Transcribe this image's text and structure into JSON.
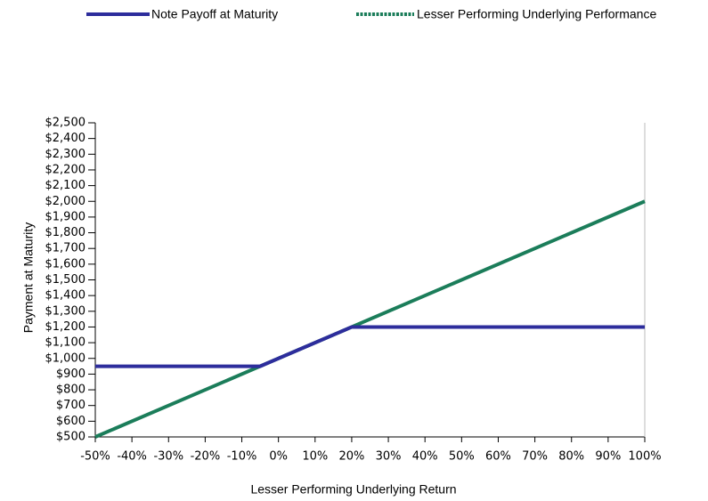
{
  "chart_data": {
    "type": "line",
    "x_label": "Lesser Performing Underlying Return",
    "y_label": "Payment at Maturity",
    "x": [
      -50,
      -5,
      20,
      100
    ],
    "series": [
      {
        "name": "Note Payoff at Maturity",
        "color": "#2d2d9c",
        "values": [
          950,
          950,
          1200,
          1200
        ]
      },
      {
        "name": "Lesser Performing Underlying Performance",
        "color": "#1b7d5a",
        "values": [
          500,
          950,
          1200,
          2000
        ]
      }
    ],
    "xlim": [
      -50,
      100
    ],
    "xticks": [
      {
        "value": -50,
        "label": "-50%"
      },
      {
        "value": -40,
        "label": "-40%"
      },
      {
        "value": -30,
        "label": "-30%"
      },
      {
        "value": -20,
        "label": "-20%"
      },
      {
        "value": -10,
        "label": "-10%"
      },
      {
        "value": 0,
        "label": "0%"
      },
      {
        "value": 10,
        "label": "10%"
      },
      {
        "value": 20,
        "label": "20%"
      },
      {
        "value": 30,
        "label": "30%"
      },
      {
        "value": 40,
        "label": "40%"
      },
      {
        "value": 50,
        "label": "50%"
      },
      {
        "value": 60,
        "label": "60%"
      },
      {
        "value": 70,
        "label": "70%"
      },
      {
        "value": 80,
        "label": "80%"
      },
      {
        "value": 90,
        "label": "90%"
      },
      {
        "value": 100,
        "label": "100%"
      }
    ],
    "ylim": [
      500,
      2500
    ],
    "yticks": [
      {
        "value": 500,
        "label": "$500"
      },
      {
        "value": 600,
        "label": "$600"
      },
      {
        "value": 700,
        "label": "$700"
      },
      {
        "value": 800,
        "label": "$800"
      },
      {
        "value": 900,
        "label": "$900"
      },
      {
        "value": 1000,
        "label": "$1,000"
      },
      {
        "value": 1100,
        "label": "$1,100"
      },
      {
        "value": 1200,
        "label": "$1,200"
      },
      {
        "value": 1300,
        "label": "$1,300"
      },
      {
        "value": 1400,
        "label": "$1,400"
      },
      {
        "value": 1500,
        "label": "$1,500"
      },
      {
        "value": 1600,
        "label": "$1,600"
      },
      {
        "value": 1700,
        "label": "$1,700"
      },
      {
        "value": 1800,
        "label": "$1,800"
      },
      {
        "value": 1900,
        "label": "$1,900"
      },
      {
        "value": 2000,
        "label": "$2,000"
      },
      {
        "value": 2100,
        "label": "$2,100"
      },
      {
        "value": 2200,
        "label": "$2,200"
      },
      {
        "value": 2300,
        "label": "$2,300"
      },
      {
        "value": 2400,
        "label": "$2,400"
      },
      {
        "value": 2500,
        "label": "$2,500"
      }
    ],
    "legend": "top"
  }
}
